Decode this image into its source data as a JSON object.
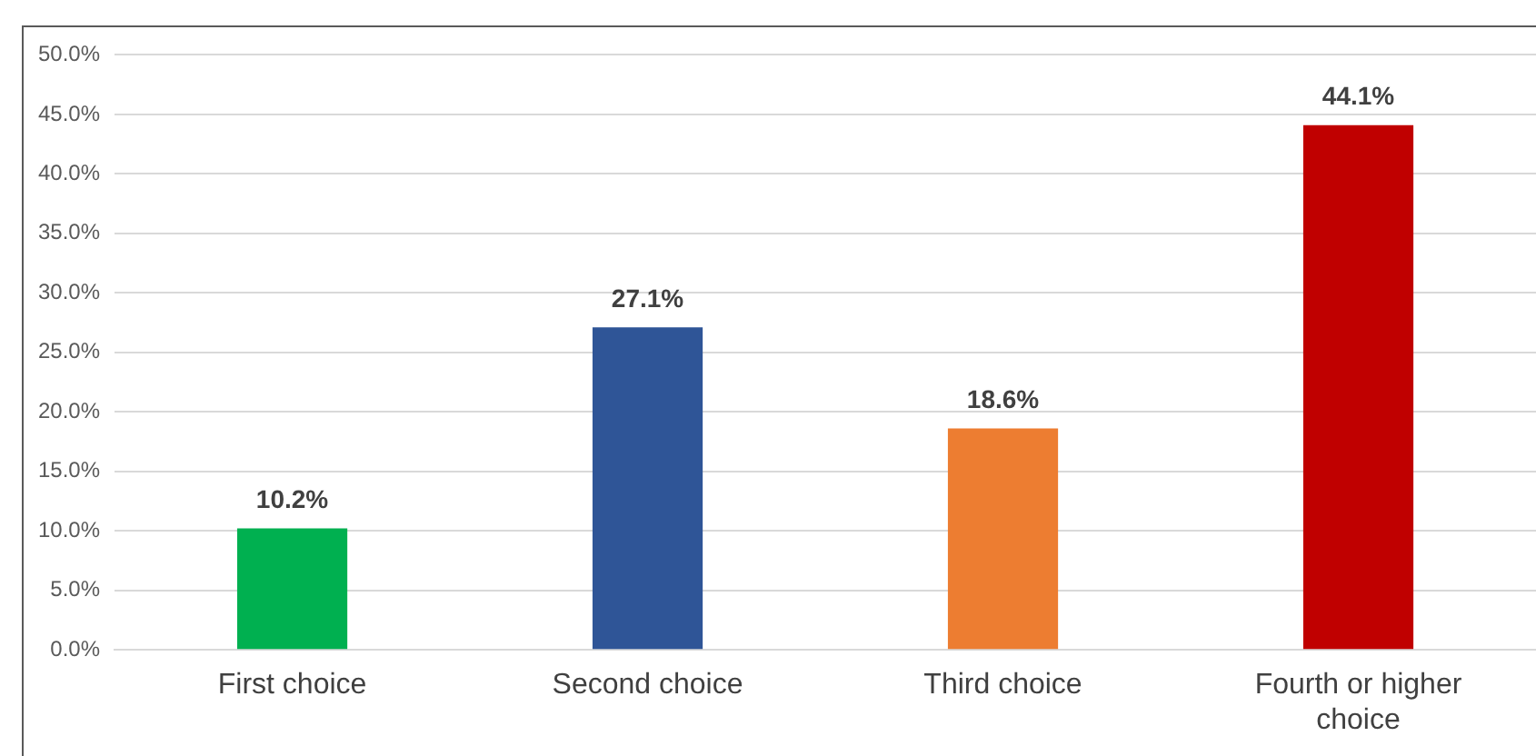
{
  "chart_data": {
    "type": "bar",
    "categories": [
      "First choice",
      "Second choice",
      "Third choice",
      "Fourth or higher choice"
    ],
    "values": [
      10.2,
      27.1,
      18.6,
      44.1
    ],
    "colors": [
      "#00b050",
      "#2f5597",
      "#ed7d31",
      "#c00000"
    ],
    "value_labels": [
      "10.2%",
      "27.1%",
      "18.6%",
      "44.1%"
    ],
    "ylim": [
      0,
      50
    ],
    "yticks": [
      {
        "value": 0,
        "label": "0.0%"
      },
      {
        "value": 5,
        "label": "5.0%"
      },
      {
        "value": 10,
        "label": "10.0%"
      },
      {
        "value": 15,
        "label": "15.0%"
      },
      {
        "value": 20,
        "label": "20.0%"
      },
      {
        "value": 25,
        "label": "25.0%"
      },
      {
        "value": 30,
        "label": "30.0%"
      },
      {
        "value": 35,
        "label": "35.0%"
      },
      {
        "value": 40,
        "label": "40.0%"
      },
      {
        "value": 45,
        "label": "45.0%"
      },
      {
        "value": 50,
        "label": "50.0%"
      }
    ],
    "grid": "y"
  }
}
